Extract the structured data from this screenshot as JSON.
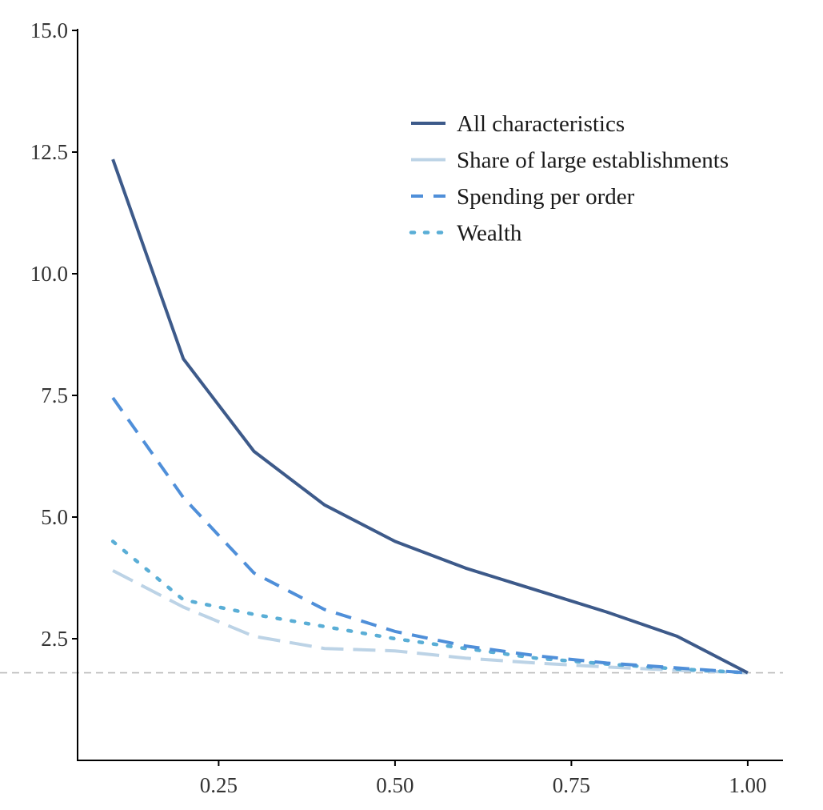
{
  "chart_data": {
    "type": "line",
    "title": "",
    "xlabel": "",
    "ylabel": "",
    "xlim": [
      0.05,
      1.05
    ],
    "ylim": [
      0,
      15
    ],
    "x_ticks": [
      0.25,
      0.5,
      0.75,
      1.0
    ],
    "x_tick_labels": [
      "0.25",
      "0.50",
      "0.75",
      "1.00"
    ],
    "y_ticks": [
      2.5,
      5.0,
      7.5,
      10.0,
      12.5,
      15.0
    ],
    "y_tick_labels": [
      "2.5",
      "5.0",
      "7.5",
      "10.0",
      "12.5",
      "15.0"
    ],
    "grid": false,
    "legend_position": "top-right",
    "reference_line": {
      "y": 1.8,
      "color": "#bbbbbb",
      "style": "dashed"
    },
    "x": [
      0.1,
      0.2,
      0.3,
      0.4,
      0.5,
      0.6,
      0.7,
      0.8,
      0.9,
      1.0
    ],
    "series": [
      {
        "name": "All characteristics",
        "color": "#3d5a8a",
        "style": "solid",
        "values": [
          12.35,
          8.25,
          6.35,
          5.25,
          4.5,
          3.95,
          3.5,
          3.05,
          2.55,
          1.8
        ]
      },
      {
        "name": "Share of large establishments",
        "color": "#bcd3e6",
        "style": "longdash",
        "values": [
          3.9,
          3.15,
          2.55,
          2.3,
          2.25,
          2.1,
          2.0,
          1.92,
          1.85,
          1.8
        ]
      },
      {
        "name": "Spending per order",
        "color": "#4f8fd9",
        "style": "dashed",
        "values": [
          7.45,
          5.4,
          3.85,
          3.1,
          2.65,
          2.35,
          2.15,
          2.0,
          1.9,
          1.8
        ]
      },
      {
        "name": "Wealth",
        "color": "#5aaed6",
        "style": "dotted",
        "values": [
          4.5,
          3.3,
          3.0,
          2.75,
          2.5,
          2.3,
          2.1,
          1.98,
          1.88,
          1.8
        ]
      }
    ]
  }
}
